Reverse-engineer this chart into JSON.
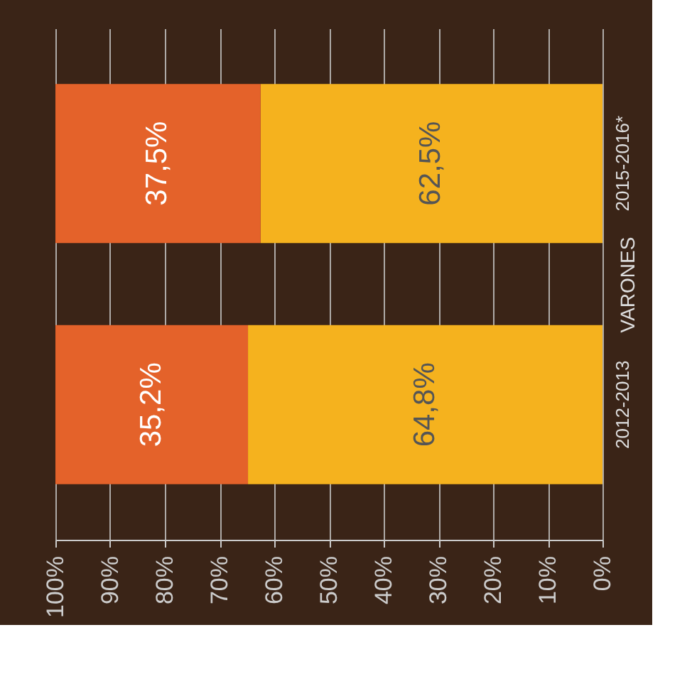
{
  "chart_data": {
    "type": "bar",
    "orientation": "horizontal",
    "stacked": true,
    "categories": [
      "2015-2016*",
      "2012-2013"
    ],
    "series": [
      {
        "color": "#f5b21e",
        "values": [
          62.5,
          64.8
        ]
      },
      {
        "color": "#e4622a",
        "values": [
          37.5,
          35.2
        ]
      }
    ],
    "value_labels": [
      [
        "62,5%",
        "64,8%"
      ],
      [
        "37,5%",
        "35,2%"
      ]
    ],
    "ylabel": "VARONES",
    "xlim": [
      100,
      0
    ],
    "xticks": [
      {
        "value": 0,
        "label": "0%"
      },
      {
        "value": 10,
        "label": "10%"
      },
      {
        "value": 20,
        "label": "20%"
      },
      {
        "value": 30,
        "label": "30%"
      },
      {
        "value": 40,
        "label": "40%"
      },
      {
        "value": 50,
        "label": "50%"
      },
      {
        "value": 60,
        "label": "60%"
      },
      {
        "value": 70,
        "label": "70%"
      },
      {
        "value": 80,
        "label": "80%"
      },
      {
        "value": 90,
        "label": "90%"
      },
      {
        "value": 100,
        "label": "100%"
      }
    ],
    "grid": "x"
  }
}
